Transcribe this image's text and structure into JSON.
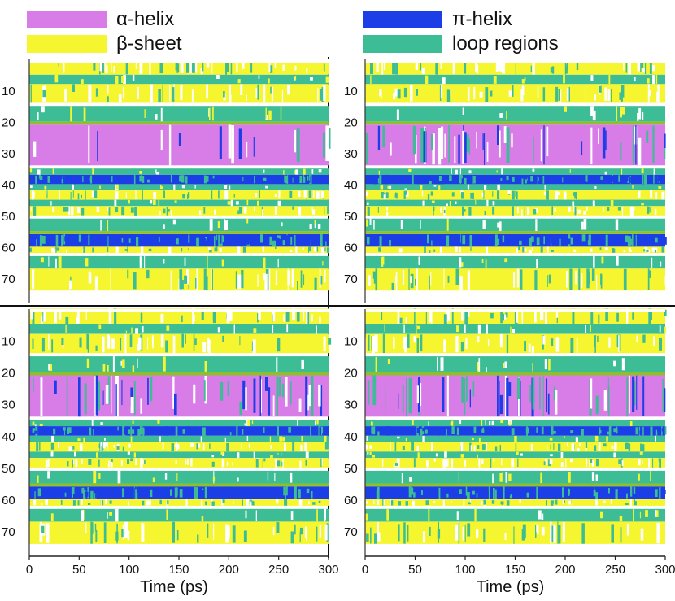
{
  "legend": {
    "alpha": {
      "label": "α-helix",
      "color": "#d87ce8"
    },
    "beta": {
      "label": "β-sheet",
      "color": "#f5f530"
    },
    "pi": {
      "label": "π-helix",
      "color": "#1c3ee6"
    },
    "loop": {
      "label": "loop regions",
      "color": "#3dbd95"
    }
  },
  "colors": {
    "helix": "#d87ce8",
    "sheet": "#f5f530",
    "pihelix": "#1c3ee6",
    "loop": "#3dbd95",
    "bend": "#8fbf2a"
  },
  "chart_data": {
    "type": "heatmap",
    "title": "",
    "xlabel": "Time (ps)",
    "ylabel": "",
    "xlim": [
      0,
      300
    ],
    "ylim": [
      0,
      76
    ],
    "x_ticks": [
      0,
      50,
      100,
      150,
      200,
      250,
      300
    ],
    "y_ticks": [
      10,
      20,
      30,
      40,
      50,
      60,
      70
    ],
    "categories": [
      "α-helix",
      "β-sheet",
      "π-helix",
      "loop regions"
    ],
    "panels": [
      {
        "name": "top-left",
        "bands": [
          {
            "from": 0,
            "to": 5,
            "state": "sheet"
          },
          {
            "from": 5,
            "to": 8,
            "state": "loop"
          },
          {
            "from": 8,
            "to": 14,
            "state": "sheet"
          },
          {
            "from": 15,
            "to": 20,
            "state": "loop"
          },
          {
            "from": 20,
            "to": 21,
            "state": "bend"
          },
          {
            "from": 21,
            "to": 34,
            "state": "helix"
          },
          {
            "from": 35,
            "to": 37,
            "state": "loop"
          },
          {
            "from": 37,
            "to": 40,
            "state": "pihelix"
          },
          {
            "from": 40,
            "to": 42,
            "state": "loop"
          },
          {
            "from": 42,
            "to": 45,
            "state": "sheet"
          },
          {
            "from": 45,
            "to": 47,
            "state": "loop"
          },
          {
            "from": 47,
            "to": 50,
            "state": "sheet"
          },
          {
            "from": 51,
            "to": 55,
            "state": "loop"
          },
          {
            "from": 55,
            "to": 56,
            "state": "bend"
          },
          {
            "from": 56,
            "to": 60,
            "state": "pihelix"
          },
          {
            "from": 60,
            "to": 62,
            "state": "sheet"
          },
          {
            "from": 63,
            "to": 67,
            "state": "loop"
          },
          {
            "from": 67,
            "to": 74,
            "state": "sheet"
          }
        ]
      },
      {
        "name": "top-right",
        "bands": [
          {
            "from": 0,
            "to": 5,
            "state": "sheet"
          },
          {
            "from": 5,
            "to": 8,
            "state": "loop"
          },
          {
            "from": 8,
            "to": 14,
            "state": "sheet"
          },
          {
            "from": 15,
            "to": 20,
            "state": "loop"
          },
          {
            "from": 20,
            "to": 21,
            "state": "bend"
          },
          {
            "from": 21,
            "to": 34,
            "state": "helix"
          },
          {
            "from": 35,
            "to": 37,
            "state": "loop"
          },
          {
            "from": 37,
            "to": 40,
            "state": "pihelix"
          },
          {
            "from": 40,
            "to": 42,
            "state": "loop"
          },
          {
            "from": 42,
            "to": 45,
            "state": "sheet"
          },
          {
            "from": 45,
            "to": 47,
            "state": "loop"
          },
          {
            "from": 47,
            "to": 50,
            "state": "sheet"
          },
          {
            "from": 51,
            "to": 55,
            "state": "loop"
          },
          {
            "from": 55,
            "to": 56,
            "state": "bend"
          },
          {
            "from": 56,
            "to": 60,
            "state": "pihelix"
          },
          {
            "from": 60,
            "to": 62,
            "state": "sheet"
          },
          {
            "from": 63,
            "to": 67,
            "state": "loop"
          },
          {
            "from": 67,
            "to": 74,
            "state": "sheet"
          }
        ]
      },
      {
        "name": "bottom-left",
        "bands": [
          {
            "from": 0,
            "to": 5,
            "state": "sheet"
          },
          {
            "from": 5,
            "to": 8,
            "state": "loop"
          },
          {
            "from": 8,
            "to": 14,
            "state": "sheet"
          },
          {
            "from": 15,
            "to": 20,
            "state": "loop"
          },
          {
            "from": 20,
            "to": 21,
            "state": "bend"
          },
          {
            "from": 21,
            "to": 34,
            "state": "helix"
          },
          {
            "from": 35,
            "to": 37,
            "state": "loop"
          },
          {
            "from": 37,
            "to": 40,
            "state": "pihelix"
          },
          {
            "from": 40,
            "to": 42,
            "state": "loop"
          },
          {
            "from": 42,
            "to": 45,
            "state": "sheet"
          },
          {
            "from": 45,
            "to": 47,
            "state": "loop"
          },
          {
            "from": 47,
            "to": 50,
            "state": "sheet"
          },
          {
            "from": 51,
            "to": 55,
            "state": "loop"
          },
          {
            "from": 55,
            "to": 56,
            "state": "bend"
          },
          {
            "from": 56,
            "to": 60,
            "state": "pihelix"
          },
          {
            "from": 60,
            "to": 62,
            "state": "sheet"
          },
          {
            "from": 63,
            "to": 67,
            "state": "loop"
          },
          {
            "from": 67,
            "to": 74,
            "state": "sheet"
          }
        ]
      },
      {
        "name": "bottom-right",
        "bands": [
          {
            "from": 0,
            "to": 5,
            "state": "sheet"
          },
          {
            "from": 5,
            "to": 8,
            "state": "loop"
          },
          {
            "from": 8,
            "to": 14,
            "state": "sheet"
          },
          {
            "from": 15,
            "to": 20,
            "state": "loop"
          },
          {
            "from": 20,
            "to": 21,
            "state": "bend"
          },
          {
            "from": 21,
            "to": 34,
            "state": "helix"
          },
          {
            "from": 35,
            "to": 37,
            "state": "loop"
          },
          {
            "from": 37,
            "to": 40,
            "state": "pihelix"
          },
          {
            "from": 40,
            "to": 42,
            "state": "loop"
          },
          {
            "from": 42,
            "to": 45,
            "state": "sheet"
          },
          {
            "from": 45,
            "to": 47,
            "state": "loop"
          },
          {
            "from": 47,
            "to": 50,
            "state": "sheet"
          },
          {
            "from": 51,
            "to": 55,
            "state": "loop"
          },
          {
            "from": 55,
            "to": 56,
            "state": "bend"
          },
          {
            "from": 56,
            "to": 60,
            "state": "pihelix"
          },
          {
            "from": 60,
            "to": 62,
            "state": "sheet"
          },
          {
            "from": 63,
            "to": 67,
            "state": "loop"
          },
          {
            "from": 67,
            "to": 74,
            "state": "sheet"
          }
        ]
      }
    ]
  }
}
